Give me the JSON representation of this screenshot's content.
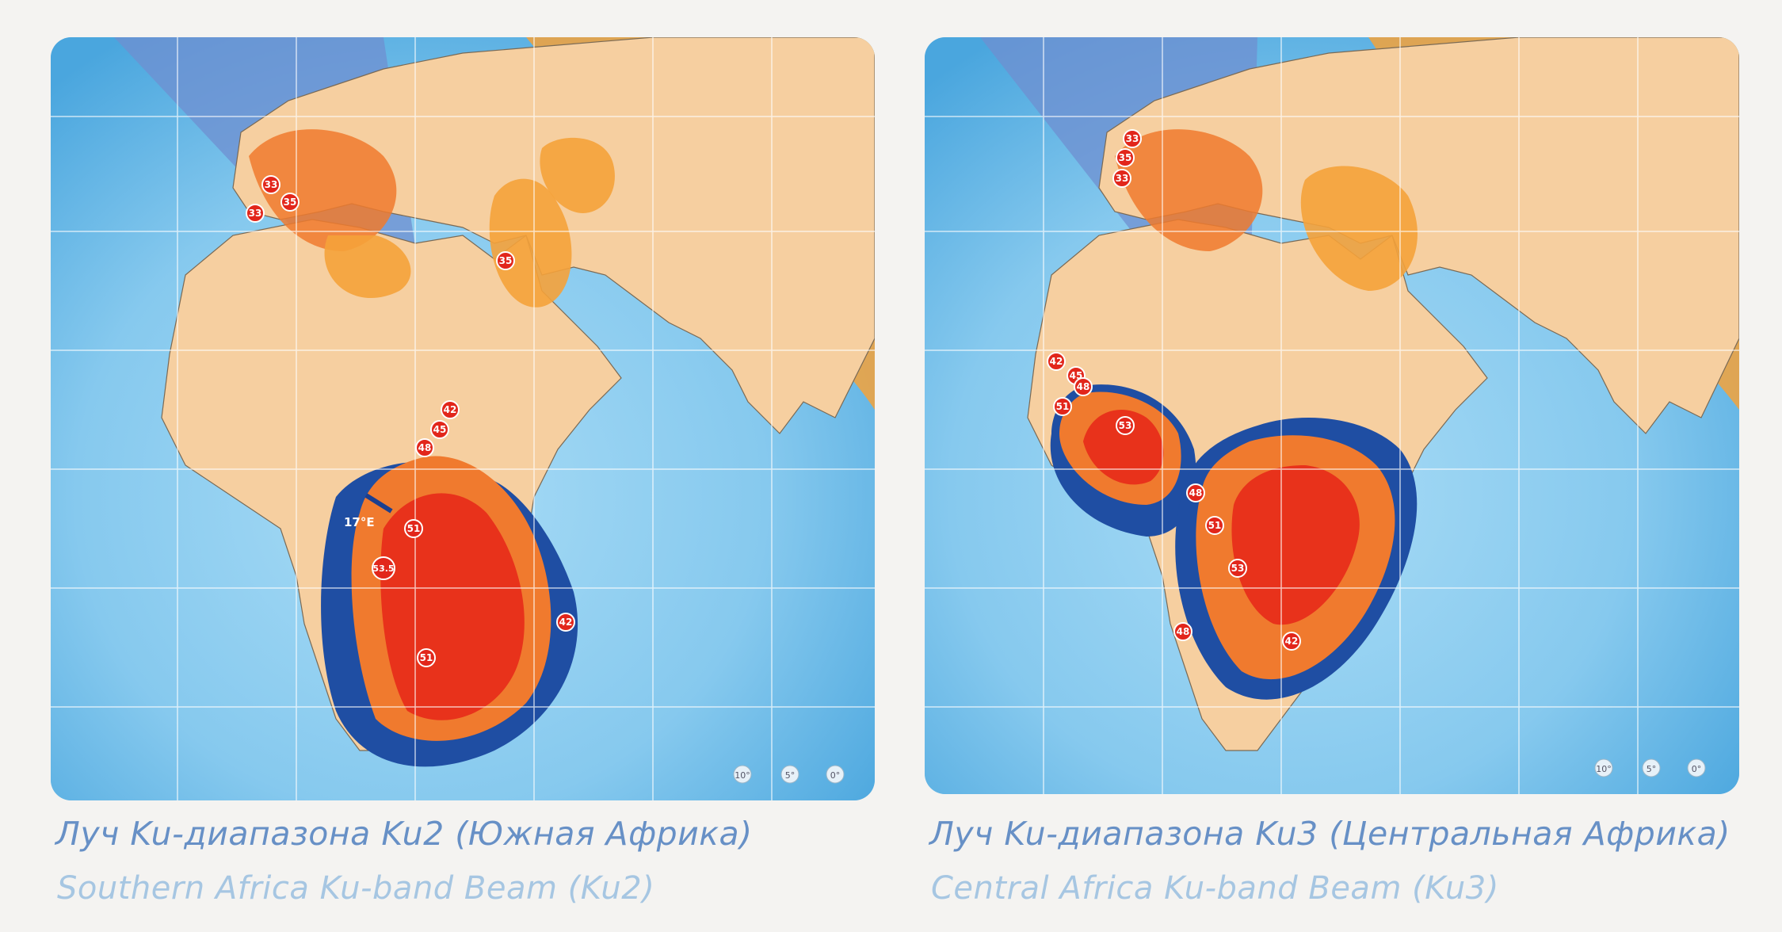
{
  "maps": [
    {
      "caption_ru": "Луч Ku-диапазона Ku2 (Южная Африка)",
      "caption_en": "Southern Africa Ku-band Beam (Ku2)",
      "satellite_label": "17°E",
      "contours": [
        "33",
        "35",
        "33",
        "35",
        "42",
        "45",
        "48",
        "51",
        "53.5",
        "51",
        "42"
      ],
      "elevation_labels": [
        "10°",
        "5°",
        "0°"
      ],
      "colors": {
        "beam_core": "#e8321b",
        "beam_outer": "#f07a2e",
        "beam_edge": "#f9a44a",
        "blue_ring": "#1f4ea3",
        "ocean": "#7fc3ea",
        "land": "#f6cfa0"
      }
    },
    {
      "caption_ru": "Луч Ku-диапазона Ku3 (Центральная Африка)",
      "caption_en": "Central Africa Ku-band Beam (Ku3)",
      "contours": [
        "33",
        "35",
        "33",
        "42",
        "45",
        "48",
        "51",
        "53",
        "48",
        "51",
        "53",
        "48",
        "42"
      ],
      "elevation_labels": [
        "10°",
        "5°",
        "0°"
      ],
      "colors": {
        "beam_core": "#e8321b",
        "beam_outer": "#f07a2e",
        "beam_edge": "#f9a44a",
        "blue_ring": "#1f4ea3",
        "ocean": "#7fc3ea",
        "land": "#f6cfa0"
      }
    }
  ]
}
